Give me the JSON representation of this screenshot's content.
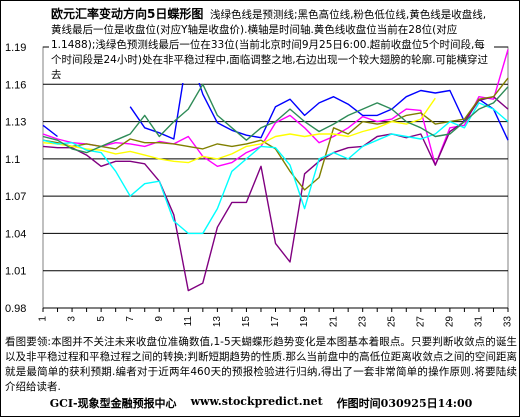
{
  "chart_data": {
    "type": "line",
    "title": "欧元汇率变动方向5日蝶形图",
    "description": "浅绿色线是预测线;黑色高位线,粉色低位线,黄色线是收盘线,黄线最后一位是收盘位(对应Y轴是收盘价).横轴是时间轴.黄色线收盘位当前在28位(对应1.1488);浅绿色预测线最后一位在33位(当前北京时间9月25日6:00.超前收盘位5个时间段,每个时间段是24小时)处在非平稳过程中,面临调整之地,右边出现一个较大翅膀的轮廓.可能横穿过去",
    "x": [
      1,
      2,
      3,
      4,
      5,
      6,
      7,
      8,
      9,
      10,
      11,
      12,
      13,
      14,
      15,
      16,
      17,
      18,
      19,
      20,
      21,
      22,
      23,
      24,
      25,
      26,
      27,
      28,
      29,
      30,
      31,
      32,
      33
    ],
    "x_tick_labels": [
      "1",
      "3",
      "5",
      "7",
      "9",
      "11",
      "13",
      "15",
      "17",
      "19",
      "21",
      "23",
      "25",
      "27",
      "29",
      "31",
      "33"
    ],
    "ylim": [
      0.98,
      1.19
    ],
    "y_ticks": [
      0.98,
      1.01,
      1.04,
      1.07,
      1.1,
      1.13,
      1.16,
      1.19
    ],
    "y_tick_labels": [
      "0.98",
      "1.01",
      "1.04",
      "1.07",
      "1.1",
      "1.13",
      "1.16",
      "1.19"
    ],
    "grid": "horizontal",
    "series": [
      {
        "color": "#0000ff",
        "values": [
          1.127,
          1.118,
          null,
          null,
          null,
          null,
          1.142,
          1.125,
          1.121,
          1.116,
          1.188,
          1.152,
          1.129,
          1.123,
          1.119,
          1.117,
          1.142,
          1.148,
          1.135,
          1.145,
          1.15,
          1.144,
          1.135,
          1.135,
          1.14,
          1.15,
          1.155,
          1.153,
          1.155,
          1.13,
          1.148,
          1.14,
          1.115
        ]
      },
      {
        "color": "#ff00ff",
        "values": [
          1.12,
          1.116,
          1.113,
          1.112,
          1.11,
          1.113,
          1.112,
          1.11,
          1.114,
          1.112,
          1.118,
          1.102,
          1.094,
          1.097,
          1.105,
          1.11,
          1.129,
          1.135,
          1.125,
          1.113,
          1.118,
          1.125,
          1.134,
          1.13,
          1.132,
          1.14,
          1.139,
          1.095,
          1.125,
          1.127,
          1.15,
          1.148,
          1.188
        ]
      },
      {
        "color": "#800080",
        "values": [
          1.11,
          1.109,
          1.109,
          1.103,
          1.094,
          1.098,
          1.098,
          1.096,
          1.082,
          1.055,
          0.994,
          1.0,
          1.045,
          1.065,
          1.065,
          1.094,
          1.032,
          1.017,
          1.088,
          1.098,
          1.105,
          1.109,
          1.11,
          1.118,
          1.12,
          1.117,
          1.12,
          1.095,
          1.122,
          1.13,
          1.147,
          1.15,
          1.14
        ]
      },
      {
        "color": "#808000",
        "values": [
          1.115,
          1.113,
          1.11,
          1.112,
          1.11,
          1.108,
          1.116,
          1.113,
          1.113,
          1.112,
          1.11,
          1.108,
          1.112,
          1.11,
          1.112,
          1.115,
          1.108,
          1.09,
          1.075,
          1.085,
          1.125,
          1.12,
          1.13,
          1.128,
          1.13,
          1.135,
          1.137,
          1.128,
          1.13,
          1.132,
          1.148,
          1.15,
          1.165
        ]
      },
      {
        "color": "#ffff00",
        "values": [
          1.113,
          1.112,
          1.11,
          1.108,
          1.107,
          1.104,
          1.106,
          1.103,
          1.1,
          1.098,
          1.097,
          1.102,
          1.1,
          1.104,
          1.11,
          1.112,
          1.118,
          1.12,
          1.118,
          1.12,
          1.12,
          1.118,
          1.122,
          1.125,
          1.13,
          1.128,
          1.132,
          1.1488,
          null,
          null,
          null,
          null,
          null
        ]
      },
      {
        "color": "#00ffff",
        "values": [
          1.115,
          1.112,
          1.113,
          1.107,
          1.105,
          1.09,
          1.07,
          1.08,
          1.082,
          1.05,
          1.04,
          1.04,
          1.06,
          1.09,
          1.1,
          1.11,
          1.109,
          1.095,
          1.06,
          1.1,
          1.105,
          1.1,
          1.11,
          1.115,
          1.12,
          1.118,
          1.116,
          1.12,
          1.13,
          1.125,
          1.145,
          1.14,
          1.13
        ]
      },
      {
        "color": "#2e8b57",
        "values": [
          1.118,
          1.115,
          1.108,
          1.105,
          1.11,
          1.115,
          1.12,
          1.135,
          1.118,
          1.13,
          1.14,
          1.16,
          1.135,
          1.125,
          1.115,
          1.125,
          1.13,
          1.14,
          1.13,
          1.122,
          1.128,
          1.135,
          1.14,
          1.145,
          1.14,
          1.13,
          1.125,
          1.118,
          1.12,
          1.13,
          1.14,
          1.145,
          1.158
        ]
      }
    ]
  },
  "footer": {
    "note": "看图要领:本图并不关注未来收盘位准确数值,1-5天蝴蝶形趋势变化是本图基本着眼点。只要判断收敛点的诞生以及非平稳过程和平稳过程之间的转换;判断短期趋势的性质.那么当前盘中的高低位距离收敛点之间的空间距离就是最简单的获利预期.编者对于近两年460天的预报检验进行归纳,得出了一套非常简单的操作原则.将要陆续介绍给读者.",
    "brand": "GCI-现象型金融预报中心",
    "url": "www.stockpredict.net",
    "timestamp": "作图时间030925日14:00"
  }
}
